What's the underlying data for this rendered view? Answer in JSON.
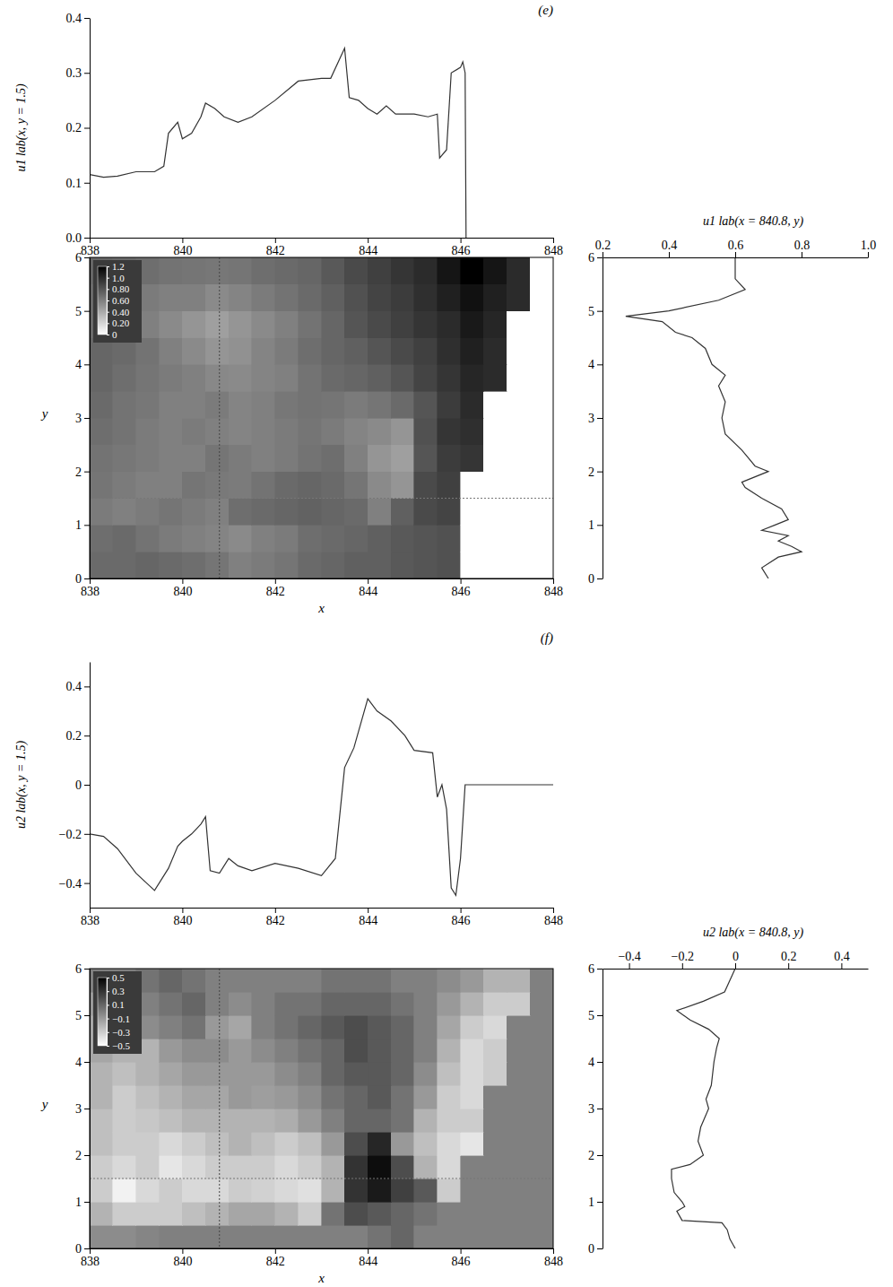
{
  "chart_data": [
    {
      "type": "line",
      "title": "(e)",
      "y_label": "u1 lab(x, y = 1.5)",
      "x": [
        838,
        838.3,
        838.6,
        839,
        839.4,
        839.6,
        839.7,
        839.9,
        840,
        840.2,
        840.4,
        840.5,
        840.7,
        840.9,
        841.2,
        841.5,
        842,
        842.5,
        843,
        843.2,
        843.5,
        843.6,
        843.8,
        844,
        844.2,
        844.4,
        844.6,
        845,
        845.3,
        845.5,
        845.55,
        845.7,
        845.8,
        846,
        846.05,
        846.1,
        846.12
      ],
      "values": [
        0.115,
        0.11,
        0.112,
        0.12,
        0.12,
        0.13,
        0.19,
        0.21,
        0.18,
        0.19,
        0.22,
        0.245,
        0.235,
        0.22,
        0.21,
        0.22,
        0.25,
        0.285,
        0.29,
        0.29,
        0.345,
        0.255,
        0.25,
        0.235,
        0.225,
        0.24,
        0.225,
        0.225,
        0.22,
        0.225,
        0.145,
        0.16,
        0.3,
        0.31,
        0.32,
        0.3,
        0
      ],
      "xlim": [
        838,
        848
      ],
      "xticks": [
        838,
        840,
        842,
        844,
        846,
        848
      ],
      "ylim": [
        0,
        0.4
      ],
      "yticks": [
        {
          "value": 0,
          "label": "0.0"
        },
        0.1,
        0.2,
        0.3,
        0.4
      ]
    },
    {
      "type": "heatmap",
      "x_label": "x",
      "y_label": "y",
      "x": [
        838.25,
        838.75,
        839.25,
        839.75,
        840.25,
        840.75,
        841.25,
        841.75,
        842.25,
        842.75,
        843.25,
        843.75,
        844.25,
        844.75,
        845.25,
        845.75,
        846.25,
        846.75,
        847.25,
        847.75
      ],
      "y": [
        0.25,
        0.75,
        1.25,
        1.75,
        2.25,
        2.75,
        3.25,
        3.75,
        4.25,
        4.75,
        5.25,
        5.75
      ],
      "values": [
        [
          0.7,
          0.7,
          0.72,
          0.7,
          0.68,
          0.65,
          0.6,
          0.62,
          0.65,
          0.7,
          0.72,
          0.75,
          0.75,
          0.78,
          0.8,
          0.82,
          0,
          0,
          0,
          0
        ],
        [
          0.68,
          0.7,
          0.66,
          0.62,
          0.6,
          0.58,
          0.55,
          0.6,
          0.62,
          0.68,
          0.7,
          0.72,
          0.75,
          0.78,
          0.8,
          0.82,
          0,
          0,
          0,
          0
        ],
        [
          0.62,
          0.6,
          0.62,
          0.65,
          0.62,
          0.6,
          0.68,
          0.7,
          0.72,
          0.74,
          0.72,
          0.7,
          0.6,
          0.75,
          0.85,
          0.88,
          0,
          0,
          0,
          0
        ],
        [
          0.65,
          0.62,
          0.6,
          0.6,
          0.65,
          0.63,
          0.62,
          0.66,
          0.7,
          0.72,
          0.7,
          0.65,
          0.55,
          0.5,
          0.85,
          0.9,
          0,
          0,
          0,
          0
        ],
        [
          0.66,
          0.64,
          0.62,
          0.6,
          0.6,
          0.65,
          0.62,
          0.6,
          0.62,
          0.66,
          0.68,
          0.6,
          0.5,
          0.45,
          0.8,
          0.92,
          0.95,
          0,
          0,
          0
        ],
        [
          0.68,
          0.66,
          0.62,
          0.6,
          0.62,
          0.6,
          0.58,
          0.6,
          0.62,
          0.65,
          0.62,
          0.58,
          0.55,
          0.5,
          0.82,
          0.95,
          0.98,
          0,
          0,
          0
        ],
        [
          0.7,
          0.66,
          0.64,
          0.6,
          0.6,
          0.62,
          0.58,
          0.6,
          0.64,
          0.66,
          0.65,
          0.62,
          0.65,
          0.7,
          0.8,
          0.92,
          1.0,
          0,
          0,
          0
        ],
        [
          0.72,
          0.68,
          0.65,
          0.62,
          0.6,
          0.56,
          0.55,
          0.58,
          0.6,
          0.66,
          0.7,
          0.72,
          0.75,
          0.8,
          0.88,
          0.95,
          1.02,
          1.0,
          0,
          0
        ],
        [
          0.72,
          0.7,
          0.66,
          0.6,
          0.55,
          0.5,
          0.52,
          0.58,
          0.62,
          0.68,
          0.72,
          0.75,
          0.8,
          0.85,
          0.9,
          0.98,
          1.05,
          1.0,
          0,
          0
        ],
        [
          0.7,
          0.68,
          0.6,
          0.55,
          0.5,
          0.45,
          0.5,
          0.55,
          0.6,
          0.66,
          0.72,
          0.8,
          0.85,
          0.9,
          0.95,
          1.0,
          1.08,
          1.02,
          0,
          0
        ],
        [
          0.7,
          0.68,
          0.62,
          0.6,
          0.6,
          0.55,
          0.58,
          0.62,
          0.66,
          0.7,
          0.75,
          0.82,
          0.88,
          0.92,
          0.98,
          1.05,
          1.12,
          1.05,
          1.0,
          0
        ],
        [
          0.72,
          0.7,
          0.68,
          0.66,
          0.65,
          0.64,
          0.65,
          0.68,
          0.7,
          0.72,
          0.78,
          0.85,
          0.9,
          0.95,
          1.0,
          1.1,
          1.2,
          1.1,
          1.0,
          0
        ]
      ],
      "xlim": [
        838,
        848
      ],
      "xticks": [
        838,
        840,
        842,
        844,
        846,
        848
      ],
      "ylim": [
        0,
        6
      ],
      "yticks": [
        0,
        1,
        2,
        3,
        4,
        5,
        6
      ],
      "color_range": [
        0,
        1.2
      ],
      "color_ticks": [
        1.2,
        {
          "value": 1,
          "label": "1.0"
        },
        {
          "value": 0.8,
          "label": "0.80"
        },
        {
          "value": 0.6,
          "label": "0.60"
        },
        {
          "value": 0.4,
          "label": "0.40"
        },
        {
          "value": 0.2,
          "label": "0.20"
        },
        0
      ],
      "cut_x": 840.8,
      "cut_y": 1.5
    },
    {
      "type": "line",
      "orientation": "horizontal",
      "x_label": "u1 lab(x = 840.8, y)",
      "y": [
        0,
        0.2,
        0.4,
        0.5,
        0.6,
        0.7,
        0.8,
        0.9,
        1.0,
        1.1,
        1.3,
        1.5,
        1.7,
        1.8,
        2.0,
        2.1,
        2.4,
        2.7,
        3.0,
        3.3,
        3.6,
        3.8,
        4.0,
        4.3,
        4.5,
        4.6,
        4.8,
        4.9,
        5.0,
        5.2,
        5.4,
        5.6,
        6.0
      ],
      "values": [
        0.7,
        0.68,
        0.73,
        0.8,
        0.77,
        0.73,
        0.76,
        0.68,
        0.72,
        0.76,
        0.74,
        0.68,
        0.63,
        0.62,
        0.7,
        0.66,
        0.62,
        0.57,
        0.56,
        0.57,
        0.55,
        0.57,
        0.53,
        0.51,
        0.47,
        0.42,
        0.38,
        0.27,
        0.4,
        0.55,
        0.63,
        0.6,
        0.6
      ],
      "xlim": [
        0.2,
        1.0
      ],
      "xticks": [
        0.2,
        0.4,
        0.6,
        0.8,
        {
          "value": 1,
          "label": "1.0"
        }
      ],
      "ylim": [
        0,
        6
      ],
      "yticks": [
        0,
        1,
        2,
        3,
        4,
        5,
        6
      ]
    },
    {
      "type": "line",
      "title": "(f)",
      "y_label": "u2 lab(x, y = 1.5)",
      "x": [
        838,
        838.3,
        838.6,
        839,
        839.4,
        839.7,
        839.9,
        840,
        840.2,
        840.4,
        840.5,
        840.6,
        840.8,
        841,
        841.2,
        841.5,
        842,
        842.5,
        843,
        843.3,
        843.5,
        843.7,
        844,
        844.2,
        844.5,
        844.8,
        845,
        845.4,
        845.5,
        845.6,
        845.7,
        845.8,
        845.9,
        846,
        846.1,
        846.5,
        848
      ],
      "values": [
        -0.2,
        -0.21,
        -0.26,
        -0.36,
        -0.43,
        -0.34,
        -0.25,
        -0.23,
        -0.2,
        -0.16,
        -0.13,
        -0.35,
        -0.36,
        -0.3,
        -0.33,
        -0.35,
        -0.32,
        -0.34,
        -0.37,
        -0.3,
        0.07,
        0.15,
        0.35,
        0.3,
        0.26,
        0.2,
        0.14,
        0.13,
        -0.05,
        0,
        -0.1,
        -0.42,
        -0.45,
        -0.3,
        0,
        0,
        0
      ],
      "xlim": [
        838,
        848
      ],
      "xticks": [
        838,
        840,
        842,
        844,
        846,
        848
      ],
      "ylim": [
        -0.5,
        0.5
      ],
      "yticks": [
        {
          "value": -0.4,
          "label": "−0.4"
        },
        {
          "value": -0.2,
          "label": "−0.2"
        },
        0,
        0.2,
        0.4
      ]
    },
    {
      "type": "heatmap",
      "x_label": "x",
      "y_label": "y",
      "x": [
        838.25,
        838.75,
        839.25,
        839.75,
        840.25,
        840.75,
        841.25,
        841.75,
        842.25,
        842.75,
        843.25,
        843.75,
        844.25,
        844.75,
        845.25,
        845.75,
        846.25,
        846.75,
        847.25,
        847.75
      ],
      "y": [
        0.25,
        0.75,
        1.25,
        1.75,
        2.25,
        2.75,
        3.25,
        3.75,
        4.25,
        4.75,
        5.25,
        5.75
      ],
      "values": [
        [
          -0.05,
          -0.05,
          -0.02,
          0,
          0,
          0,
          0,
          0,
          0,
          0,
          0,
          0,
          0.05,
          0.1,
          0,
          0,
          0,
          0,
          0,
          0
        ],
        [
          -0.2,
          -0.3,
          -0.3,
          -0.3,
          -0.25,
          -0.2,
          -0.15,
          -0.15,
          -0.2,
          -0.3,
          0.05,
          0.2,
          0.15,
          0.1,
          0.05,
          0,
          0,
          0,
          0,
          0
        ],
        [
          -0.3,
          -0.45,
          -0.35,
          -0.3,
          -0.35,
          -0.35,
          -0.3,
          -0.32,
          -0.35,
          -0.38,
          -0.2,
          0.3,
          0.4,
          0.25,
          0.15,
          -0.3,
          0,
          0,
          0,
          0
        ],
        [
          -0.3,
          -0.35,
          -0.3,
          -0.4,
          -0.35,
          -0.3,
          -0.3,
          -0.3,
          -0.35,
          -0.3,
          -0.2,
          0.3,
          0.45,
          0.2,
          -0.2,
          -0.35,
          0,
          0,
          0,
          0
        ],
        [
          -0.25,
          -0.3,
          -0.3,
          -0.35,
          -0.3,
          -0.25,
          -0.2,
          -0.25,
          -0.3,
          -0.25,
          -0.1,
          0.2,
          0.35,
          -0.1,
          -0.25,
          -0.35,
          -0.4,
          0,
          0,
          0
        ],
        [
          -0.25,
          -0.3,
          -0.28,
          -0.25,
          -0.2,
          -0.2,
          -0.2,
          -0.2,
          -0.18,
          -0.1,
          0,
          0.1,
          0.1,
          0.05,
          -0.2,
          -0.3,
          -0.3,
          0,
          0,
          0
        ],
        [
          -0.2,
          -0.3,
          -0.25,
          -0.2,
          -0.15,
          -0.15,
          -0.1,
          -0.12,
          -0.1,
          -0.05,
          0.05,
          0.1,
          0.15,
          0.05,
          -0.1,
          -0.3,
          -0.35,
          0,
          0,
          0
        ],
        [
          -0.2,
          -0.25,
          -0.2,
          -0.15,
          -0.1,
          -0.1,
          -0.1,
          -0.1,
          -0.05,
          0,
          0.1,
          0.15,
          0.15,
          0.1,
          -0.05,
          -0.25,
          -0.35,
          -0.3,
          0,
          0
        ],
        [
          -0.15,
          -0.2,
          -0.2,
          -0.1,
          -0.05,
          -0.05,
          -0.1,
          -0.05,
          0,
          0.05,
          0.1,
          0.2,
          0.15,
          0.1,
          0,
          -0.2,
          -0.35,
          -0.3,
          0,
          0
        ],
        [
          -0.15,
          -0.1,
          -0.05,
          0,
          0.05,
          -0.1,
          -0.15,
          0,
          0.05,
          0.1,
          0.15,
          0.2,
          0.15,
          0.1,
          0,
          -0.15,
          -0.3,
          -0.35,
          0,
          0
        ],
        [
          -0.1,
          -0.05,
          0,
          0.05,
          0.1,
          0,
          -0.05,
          0,
          0.05,
          0.05,
          0.1,
          0.1,
          0.1,
          0.05,
          0,
          -0.1,
          -0.2,
          -0.3,
          -0.3,
          0
        ],
        [
          0,
          0,
          0.05,
          0.1,
          0.05,
          0,
          0,
          0,
          0,
          0,
          0.05,
          0.05,
          0.05,
          0,
          0,
          -0.05,
          -0.1,
          -0.2,
          -0.2,
          0
        ]
      ],
      "xlim": [
        838,
        848
      ],
      "xticks": [
        838,
        840,
        842,
        844,
        846,
        848
      ],
      "ylim": [
        0,
        6
      ],
      "yticks": [
        0,
        1,
        2,
        3,
        4,
        5,
        6
      ],
      "color_range": [
        -0.5,
        0.5
      ],
      "color_ticks": [
        0.5,
        0.3,
        0.1,
        {
          "value": -0.1,
          "label": "−0.1"
        },
        {
          "value": -0.3,
          "label": "−0.3"
        },
        {
          "value": -0.5,
          "label": "−0.5"
        }
      ],
      "cut_x": 840.8,
      "cut_y": 1.5
    },
    {
      "type": "line",
      "orientation": "horizontal",
      "x_label": "u2 lab(x = 840.8, y)",
      "y": [
        0,
        0.2,
        0.4,
        0.55,
        0.6,
        0.8,
        0.9,
        1.0,
        1.2,
        1.5,
        1.7,
        1.8,
        2.0,
        2.3,
        2.6,
        3.0,
        3.2,
        3.5,
        4.0,
        4.3,
        4.5,
        4.7,
        4.9,
        5.1,
        5.3,
        5.5,
        6.0
      ],
      "values": [
        0,
        -0.02,
        -0.03,
        -0.05,
        -0.2,
        -0.22,
        -0.19,
        -0.2,
        -0.23,
        -0.24,
        -0.24,
        -0.17,
        -0.12,
        -0.14,
        -0.13,
        -0.1,
        -0.11,
        -0.09,
        -0.08,
        -0.07,
        -0.06,
        -0.1,
        -0.17,
        -0.22,
        -0.12,
        -0.04,
        0
      ],
      "xlim": [
        -0.5,
        0.5
      ],
      "xticks": [
        {
          "value": -0.4,
          "label": "−0.4"
        },
        {
          "value": -0.2,
          "label": "−0.2"
        },
        0,
        0.2,
        0.4
      ],
      "ylim": [
        0,
        6
      ],
      "yticks": [
        0,
        1,
        2,
        3,
        4,
        5,
        6
      ]
    }
  ]
}
